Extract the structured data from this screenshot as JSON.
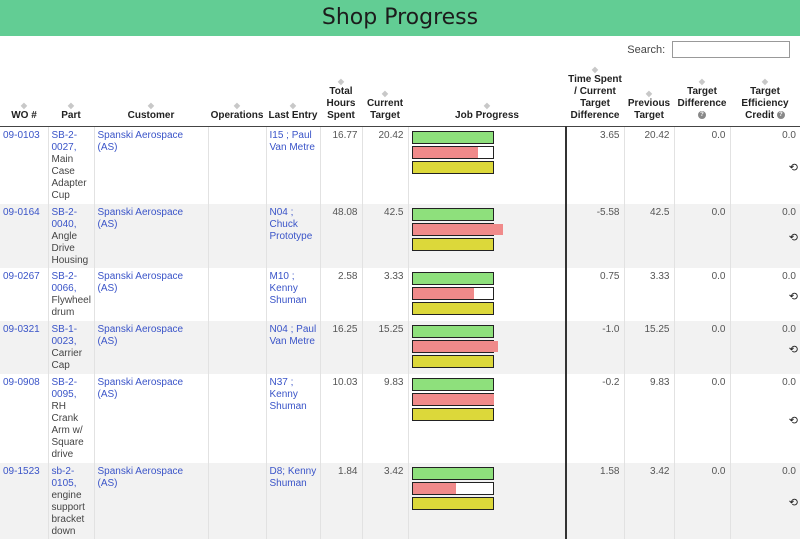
{
  "title": "Shop Progress",
  "search": {
    "label": "Search:",
    "value": ""
  },
  "columns": {
    "wo": "WO #",
    "part": "Part",
    "customer": "Customer",
    "operations": "Operations",
    "last_entry": "Last Entry",
    "total_hours": "Total Hours Spent",
    "current_target": "Current Target",
    "job_progress": "Job Progress",
    "time_spent_diff": "Time Spent / Current Target Difference",
    "previous_target": "Previous Target",
    "target_difference": "Target Difference",
    "target_efficiency": "Target Efficiency Credit"
  },
  "rows": [
    {
      "wo": "09-0103",
      "part_no": "SB-2-0027,",
      "part_desc": "Main Case Adapter Cup",
      "customer": "Spanski Aerospace (AS)",
      "operations": "",
      "last_entry": "I15 ; Paul Van Metre",
      "total_hours": "16.77",
      "current_target": "20.42",
      "diff": "3.65",
      "previous_target": "20.42",
      "target_difference": "0.0",
      "efficiency": "0.0",
      "progress": {
        "green": 1.0,
        "red": 0.82,
        "yellow": 1.0
      }
    },
    {
      "wo": "09-0164",
      "part_no": "SB-2-0040,",
      "part_desc": "Angle Drive Housing",
      "customer": "Spanski Aerospace (AS)",
      "operations": "",
      "last_entry": "N04 ; Chuck Prototype",
      "total_hours": "48.08",
      "current_target": "42.5",
      "diff": "-5.58",
      "previous_target": "42.5",
      "target_difference": "0.0",
      "efficiency": "0.0",
      "progress": {
        "green": 1.0,
        "red": 1.13,
        "yellow": 1.0
      }
    },
    {
      "wo": "09-0267",
      "part_no": "SB-2-0066,",
      "part_desc": "Flywheel drum",
      "customer": "Spanski Aerospace (AS)",
      "operations": "",
      "last_entry": "M10 ; Kenny Shuman",
      "total_hours": "2.58",
      "current_target": "3.33",
      "diff": "0.75",
      "previous_target": "3.33",
      "target_difference": "0.0",
      "efficiency": "0.0",
      "progress": {
        "green": 1.0,
        "red": 0.77,
        "yellow": 1.0
      }
    },
    {
      "wo": "09-0321",
      "part_no": "SB-1-0023,",
      "part_desc": "Carrier Cap",
      "customer": "Spanski Aerospace (AS)",
      "operations": "",
      "last_entry": "N04 ; Paul Van Metre",
      "total_hours": "16.25",
      "current_target": "15.25",
      "diff": "-1.0",
      "previous_target": "15.25",
      "target_difference": "0.0",
      "efficiency": "0.0",
      "progress": {
        "green": 1.0,
        "red": 1.07,
        "yellow": 1.0
      }
    },
    {
      "wo": "09-0908",
      "part_no": "SB-2-0095,",
      "part_desc": "RH Crank Arm w/ Square drive",
      "customer": "Spanski Aerospace (AS)",
      "operations": "",
      "last_entry": "N37 ; Kenny Shuman",
      "total_hours": "10.03",
      "current_target": "9.83",
      "diff": "-0.2",
      "previous_target": "9.83",
      "target_difference": "0.0",
      "efficiency": "0.0",
      "progress": {
        "green": 1.0,
        "red": 1.02,
        "yellow": 1.0
      }
    },
    {
      "wo": "09-1523",
      "part_no": "sb-2-0105,",
      "part_desc": "engine support bracket down",
      "customer": "Spanski Aerospace (AS)",
      "operations": "",
      "last_entry": "D8; Kenny Shuman",
      "total_hours": "1.84",
      "current_target": "3.42",
      "diff": "1.58",
      "previous_target": "3.42",
      "target_difference": "0.0",
      "efficiency": "0.0",
      "progress": {
        "green": 1.0,
        "red": 0.54,
        "yellow": 1.0
      }
    }
  ],
  "icons": {
    "history": "history-icon",
    "sort": "sort-arrows-icon",
    "info": "info-icon"
  },
  "colors": {
    "banner": "#62cd94",
    "link": "#3a54c8",
    "bar_green": "#8ee07c",
    "bar_red": "#f08a8a",
    "bar_yellow": "#dcd83a"
  }
}
